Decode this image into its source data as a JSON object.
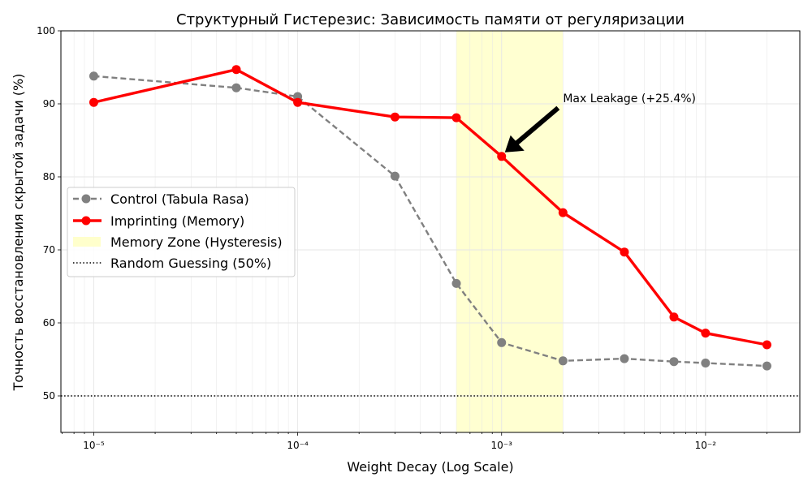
{
  "chart_data": {
    "type": "line",
    "title": "Структурный Гистерезис: Зависимость памяти от регуляризации",
    "xlabel": "Weight Decay (Log Scale)",
    "ylabel": "Точность восстановления скрытой задачи (%)",
    "xscale": "log",
    "xlim": [
      6.9e-06,
      0.029
    ],
    "ylim": [
      45,
      100
    ],
    "grid": true,
    "legend_position": "center-left",
    "x_ticks": [
      1e-05,
      0.0001,
      0.001,
      0.01
    ],
    "x_tick_labels": [
      "10⁻⁵",
      "10⁻⁴",
      "10⁻³",
      "10⁻²"
    ],
    "y_ticks": [
      50,
      60,
      70,
      80,
      90,
      100
    ],
    "y_tick_labels": [
      "50",
      "60",
      "70",
      "80",
      "90",
      "100"
    ],
    "x": [
      1e-05,
      5e-05,
      0.0001,
      0.0003,
      0.0006,
      0.001,
      0.002,
      0.004,
      0.007,
      0.01,
      0.02
    ],
    "series": [
      {
        "name": "Control (Tabula Rasa)",
        "color": "#808080",
        "style": "dashed",
        "values": [
          93.8,
          92.2,
          91.0,
          80.1,
          65.4,
          57.3,
          54.8,
          55.1,
          54.7,
          54.5,
          54.1
        ]
      },
      {
        "name": "Imprinting (Memory)",
        "color": "#ff0000",
        "style": "solid",
        "values": [
          90.2,
          94.7,
          90.2,
          88.2,
          88.1,
          82.8,
          75.1,
          69.7,
          60.8,
          58.6,
          57.0
        ]
      }
    ],
    "span": {
      "name": "Memory Zone (Hysteresis)",
      "x_range": [
        0.0006,
        0.002
      ],
      "color": "#ffffcc"
    },
    "hline": {
      "name": "Random Guessing (50%)",
      "y": 50,
      "color": "#000000",
      "style": "dotted"
    },
    "annotation": {
      "text": "Max Leakage (+25.4%)",
      "x": 0.001,
      "y": 82.8,
      "text_x": 0.002,
      "text_y": 90
    }
  }
}
